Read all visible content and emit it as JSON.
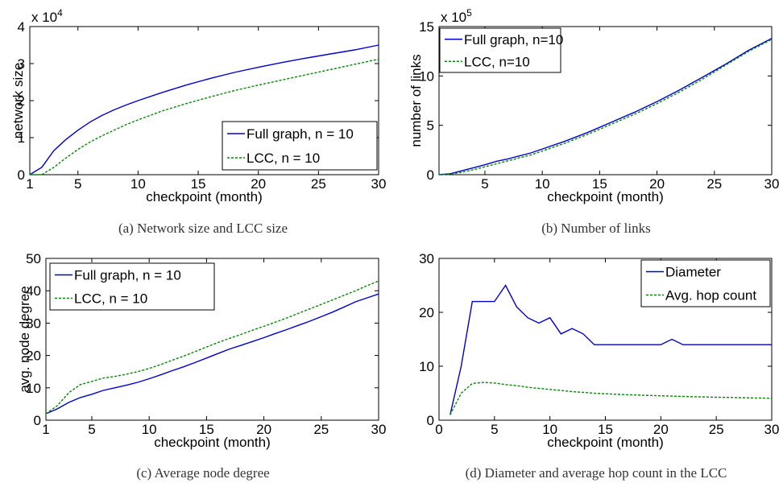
{
  "chart_data": [
    {
      "type": "line",
      "caption": "(a) Network size and LCC size",
      "xlabel": "checkpoint (month)",
      "ylabel": "network size",
      "exponent_base": "x 10",
      "exponent_power": "4",
      "xlim": [
        1,
        30
      ],
      "ylim": [
        0,
        4
      ],
      "xticks": [
        "1",
        "5",
        "10",
        "15",
        "20",
        "25",
        "30"
      ],
      "yticks": [
        "0",
        "1",
        "2",
        "3",
        "4"
      ],
      "legend_position": "lower-right",
      "series": [
        {
          "name": "Full graph, n = 10",
          "color": "#0000cc",
          "dash": "solid",
          "x": [
            1,
            2,
            3,
            4,
            5,
            6,
            7,
            8,
            9,
            10,
            12,
            14,
            16,
            18,
            20,
            22,
            24,
            26,
            28,
            30
          ],
          "y": [
            0.0,
            0.2,
            0.65,
            0.95,
            1.2,
            1.42,
            1.6,
            1.75,
            1.88,
            2.0,
            2.22,
            2.42,
            2.6,
            2.76,
            2.9,
            3.03,
            3.15,
            3.26,
            3.37,
            3.5
          ]
        },
        {
          "name": "LCC, n = 10",
          "color": "#008800",
          "dash": "dashed",
          "x": [
            1,
            2,
            3,
            4,
            5,
            6,
            7,
            8,
            9,
            10,
            12,
            14,
            16,
            18,
            20,
            22,
            24,
            26,
            28,
            30
          ],
          "y": [
            0.0,
            0.0,
            0.2,
            0.45,
            0.68,
            0.88,
            1.05,
            1.2,
            1.35,
            1.48,
            1.72,
            1.92,
            2.1,
            2.27,
            2.42,
            2.56,
            2.7,
            2.84,
            2.98,
            3.12
          ]
        }
      ]
    },
    {
      "type": "line",
      "caption": "(b) Number of links",
      "xlabel": "checkpoint (month)",
      "ylabel": "number of links",
      "exponent_base": "x 10",
      "exponent_power": "5",
      "xlim": [
        1,
        30
      ],
      "ylim": [
        0,
        15
      ],
      "xticks": [
        "5",
        "10",
        "15",
        "20",
        "25",
        "30"
      ],
      "yticks": [
        "0",
        "5",
        "10",
        "15"
      ],
      "legend_position": "top-left",
      "series": [
        {
          "name": "Full graph, n=10",
          "color": "#0000cc",
          "dash": "solid",
          "x": [
            1,
            2,
            3,
            4,
            5,
            6,
            7,
            8,
            9,
            10,
            12,
            14,
            16,
            18,
            20,
            22,
            24,
            26,
            28,
            30
          ],
          "y": [
            0.0,
            0.1,
            0.4,
            0.7,
            1.0,
            1.35,
            1.6,
            1.9,
            2.2,
            2.6,
            3.4,
            4.3,
            5.3,
            6.3,
            7.4,
            8.6,
            9.9,
            11.2,
            12.6,
            13.8
          ]
        },
        {
          "name": "LCC, n=10",
          "color": "#008800",
          "dash": "dashed",
          "x": [
            1,
            2,
            3,
            4,
            5,
            6,
            7,
            8,
            9,
            10,
            12,
            14,
            16,
            18,
            20,
            22,
            24,
            26,
            28,
            30
          ],
          "y": [
            0.0,
            0.05,
            0.25,
            0.5,
            0.8,
            1.1,
            1.4,
            1.7,
            2.0,
            2.4,
            3.2,
            4.1,
            5.1,
            6.1,
            7.2,
            8.4,
            9.7,
            11.1,
            12.5,
            13.7
          ]
        }
      ]
    },
    {
      "type": "line",
      "caption": "(c) Average node degree",
      "xlabel": "checkpoint (month)",
      "ylabel": "avg. node degree",
      "xlim": [
        1,
        30
      ],
      "ylim": [
        0,
        50
      ],
      "xticks": [
        "1",
        "5",
        "10",
        "15",
        "20",
        "25",
        "30"
      ],
      "yticks": [
        "0",
        "10",
        "20",
        "30",
        "40",
        "50"
      ],
      "legend_position": "top-left",
      "series": [
        {
          "name": "Full graph, n = 10",
          "color": "#0000cc",
          "dash": "solid",
          "x": [
            1,
            2,
            3,
            4,
            5,
            6,
            7,
            8,
            9,
            10,
            11,
            12,
            13,
            14,
            15,
            16,
            17,
            18,
            19,
            20,
            21,
            22,
            23,
            24,
            25,
            26,
            27,
            28,
            29,
            30
          ],
          "y": [
            2,
            3.5,
            5.5,
            7,
            8,
            9.2,
            10,
            10.8,
            11.7,
            12.8,
            14,
            15.3,
            16.5,
            17.8,
            19.2,
            20.6,
            22,
            23.1,
            24.3,
            25.5,
            26.8,
            28,
            29.3,
            30.6,
            32,
            33.4,
            35,
            36.6,
            37.8,
            39
          ]
        },
        {
          "name": "LCC, n = 10",
          "color": "#008800",
          "dash": "dashed",
          "x": [
            1,
            2,
            3,
            4,
            5,
            6,
            7,
            8,
            9,
            10,
            11,
            12,
            13,
            14,
            15,
            16,
            17,
            18,
            19,
            20,
            21,
            22,
            23,
            24,
            25,
            26,
            27,
            28,
            29,
            30
          ],
          "y": [
            2,
            4.5,
            8.5,
            11,
            12,
            13,
            13.5,
            14.2,
            15,
            16,
            17.2,
            18.5,
            19.8,
            21.2,
            22.6,
            24,
            25.3,
            26.5,
            27.8,
            29,
            30.3,
            31.6,
            33,
            34.4,
            35.8,
            37.2,
            38.6,
            40,
            41.6,
            43
          ]
        }
      ]
    },
    {
      "type": "line",
      "caption": "(d) Diameter and average hop count in the LCC",
      "xlabel": "checkpoint (month)",
      "ylabel": "",
      "xlim": [
        0,
        30
      ],
      "ylim": [
        0,
        30
      ],
      "xticks": [
        "0",
        "5",
        "10",
        "15",
        "20",
        "25",
        "30"
      ],
      "yticks": [
        "0",
        "10",
        "20",
        "30"
      ],
      "legend_position": "top-right",
      "series": [
        {
          "name": "Diameter",
          "color": "#0000cc",
          "dash": "solid",
          "x": [
            1,
            2,
            3,
            4,
            5,
            6,
            7,
            8,
            9,
            10,
            11,
            12,
            13,
            14,
            15,
            16,
            17,
            18,
            19,
            20,
            21,
            22,
            23,
            24,
            25,
            26,
            27,
            28,
            29,
            30
          ],
          "y": [
            1,
            10,
            22,
            22,
            22,
            25,
            21,
            19,
            18,
            19,
            16,
            17,
            16,
            14,
            14,
            14,
            14,
            14,
            14,
            14,
            15,
            14,
            14,
            14,
            14,
            14,
            14,
            14,
            14,
            14
          ]
        },
        {
          "name": "Avg. hop count",
          "color": "#008800",
          "dash": "dashed",
          "x": [
            1,
            2,
            3,
            4,
            5,
            6,
            7,
            8,
            9,
            10,
            11,
            12,
            13,
            14,
            15,
            16,
            17,
            18,
            19,
            20,
            21,
            22,
            23,
            24,
            25,
            26,
            27,
            28,
            29,
            30
          ],
          "y": [
            1,
            5,
            6.8,
            7,
            6.9,
            6.6,
            6.4,
            6.1,
            5.9,
            5.7,
            5.5,
            5.3,
            5.15,
            5.0,
            4.9,
            4.8,
            4.72,
            4.65,
            4.58,
            4.52,
            4.46,
            4.4,
            4.35,
            4.3,
            4.26,
            4.22,
            4.18,
            4.14,
            4.1,
            4.07
          ]
        }
      ]
    }
  ]
}
